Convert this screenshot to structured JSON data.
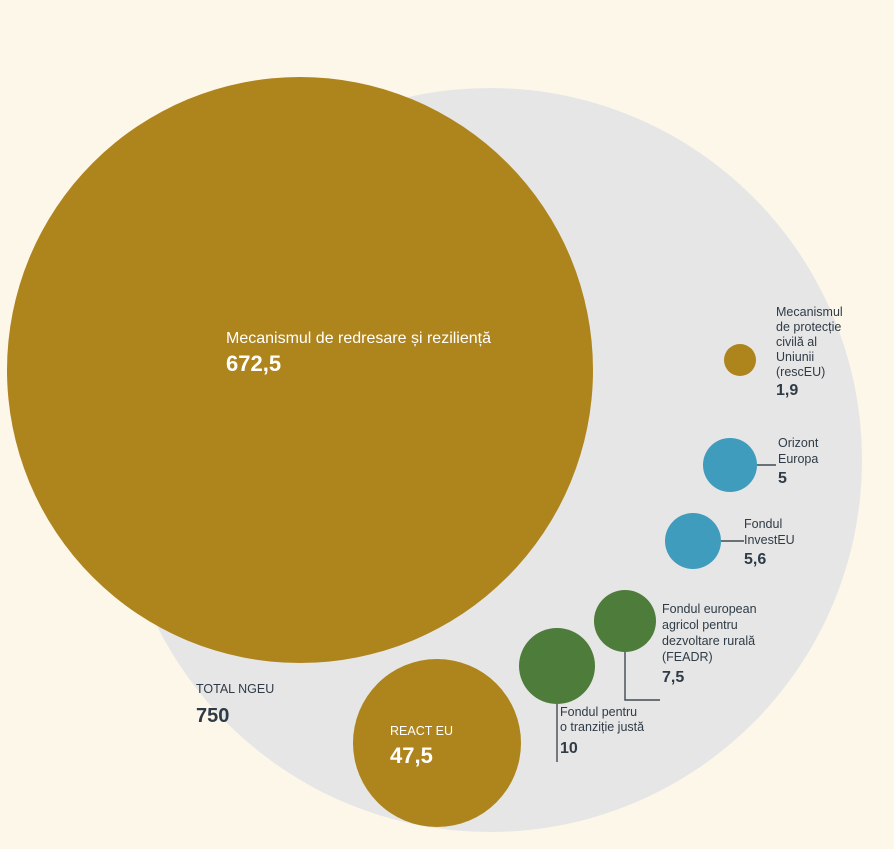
{
  "chart_data": {
    "type": "bubble",
    "total": {
      "label": "TOTAL NGEU",
      "value_text": "750",
      "value": 750
    },
    "colors": {
      "background": "#fdf7ea",
      "outer": "#e6e6e6",
      "gold": "#ae841d",
      "blue": "#3f9cbc",
      "green": "#4e7c3a"
    },
    "bubbles": [
      {
        "id": "rrf",
        "label_lines": [
          "Mecanismul de redresare și reziliență"
        ],
        "value_text": "672,5",
        "value": 672.5,
        "color": "gold"
      },
      {
        "id": "react",
        "label_lines": [
          "REACT EU"
        ],
        "value_text": "47,5",
        "value": 47.5,
        "color": "gold"
      },
      {
        "id": "jtf",
        "label_lines": [
          "Fondul pentru",
          "o tranziție justă"
        ],
        "value_text": "10",
        "value": 10,
        "color": "green"
      },
      {
        "id": "feadr",
        "label_lines": [
          "Fondul european",
          "agricol pentru",
          "dezvoltare rurală",
          "(FEADR)"
        ],
        "value_text": "7,5",
        "value": 7.5,
        "color": "green"
      },
      {
        "id": "investeu",
        "label_lines": [
          "Fondul",
          "InvestEU"
        ],
        "value_text": "5,6",
        "value": 5.6,
        "color": "blue"
      },
      {
        "id": "orizont",
        "label_lines": [
          "Orizont",
          "Europa"
        ],
        "value_text": "5",
        "value": 5,
        "color": "blue"
      },
      {
        "id": "rescue",
        "label_lines": [
          "Mecanismul",
          "de protecție",
          "civilă al",
          "Uniunii",
          "(rescEU)"
        ],
        "value_text": "1,9",
        "value": 1.9,
        "color": "gold"
      }
    ]
  }
}
